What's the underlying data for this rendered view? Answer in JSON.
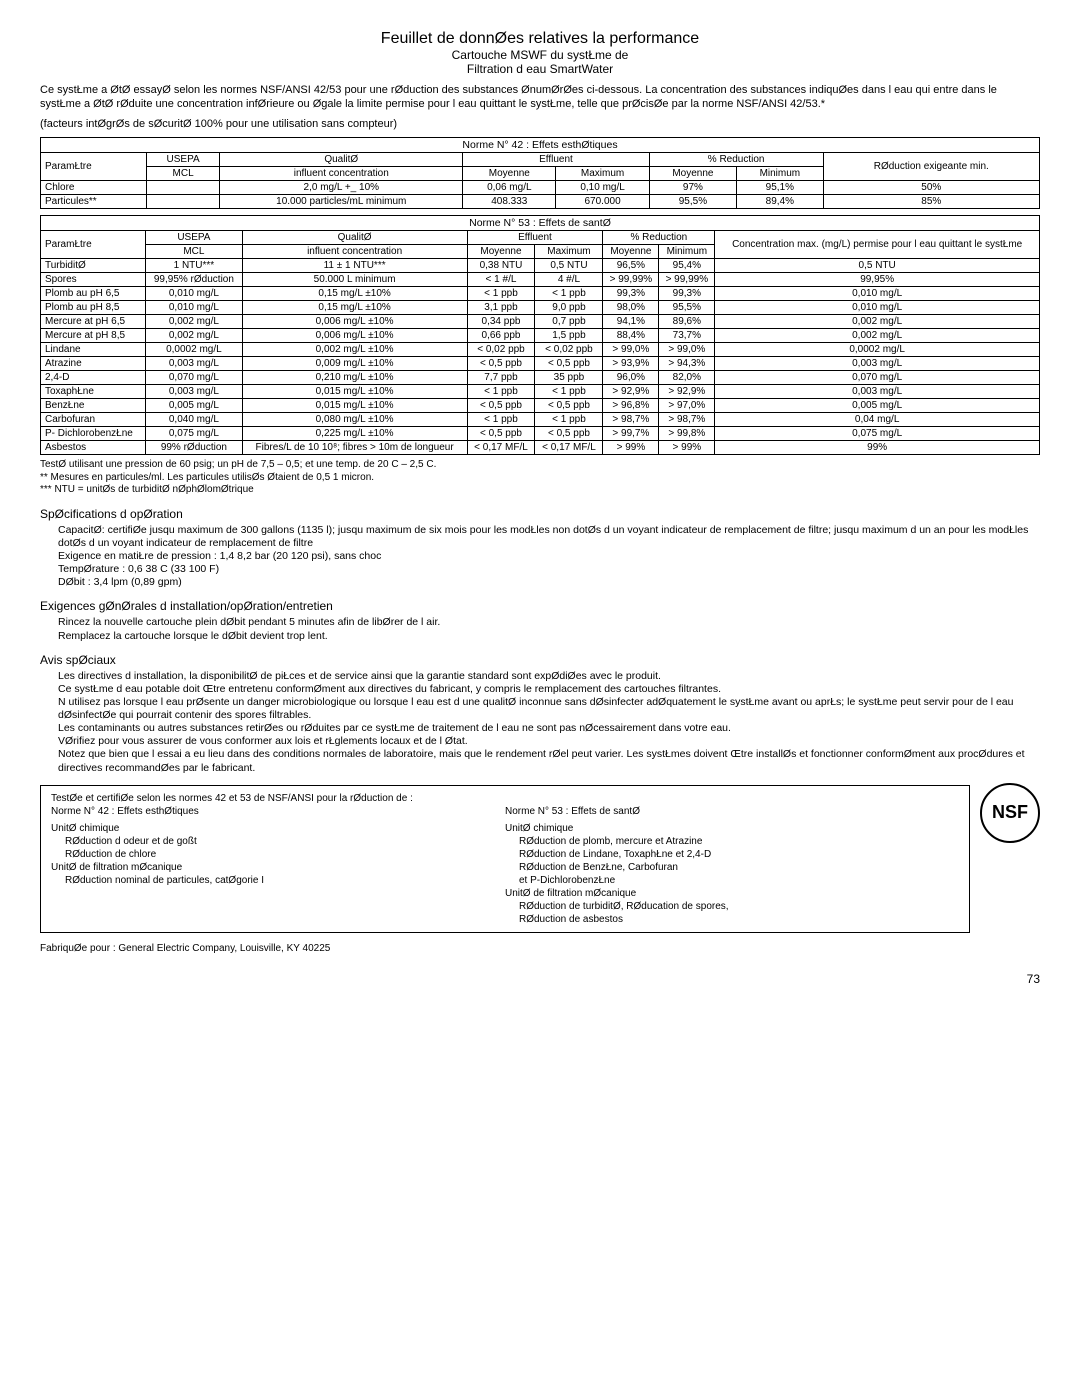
{
  "title": {
    "main": "Feuillet de donnØes relatives   la performance",
    "sub1": "Cartouche MSWF du systŁme de",
    "sub2": "Filtration d eau SmartWater"
  },
  "intro": "Ce systŁme a ØtØ essayØ selon les normes NSF/ANSI 42/53 pour une rØduction des substances ØnumØrØes ci-dessous. La concentration des substances indiquØes dans l eau qui entre dans le systŁme a ØtØ rØduite   une concentration infØrieure ou Øgale   la limite permise pour l eau quittant le systŁme, telle que prØcisØe par la norme NSF/ANSI 42/53.*",
  "factors": "(facteurs intØgrØs de sØcuritØ   100% pour une utilisation sans compteur)",
  "table42": {
    "caption": "Norme N° 42 : Effets esthØtiques",
    "headers": {
      "param": "ParamŁtre",
      "usepa1": "USEPA",
      "usepa2": "MCL",
      "qual1": "QualitØ",
      "qual2": "influent concentration",
      "effl": "Effluent",
      "moy": "Moyenne",
      "max": "Maximum",
      "redpct": "% Reduction",
      "moy2": "Moyenne",
      "min": "Minimum",
      "redmin": "RØduction exigeante min."
    },
    "rows": [
      {
        "p": "Chlore",
        "u": "",
        "q": "2,0 mg/L +_ 10%",
        "em": "0,06 mg/L",
        "ex": "0,10 mg/L",
        "rm": "97%",
        "rn": "95,1%",
        "rq": "50%"
      },
      {
        "p": "Particules**",
        "u": "",
        "q": "10.000 particles/mL minimum",
        "em": "408.333",
        "ex": "670.000",
        "rm": "95,5%",
        "rn": "89,4%",
        "rq": "85%"
      }
    ]
  },
  "table53": {
    "caption": "Norme N° 53 : Effets de santØ",
    "headers": {
      "param": "ParamŁtre",
      "usepa1": "USEPA",
      "usepa2": "MCL",
      "qual1": "QualitØ",
      "qual2": "influent concentration",
      "effl": "Effluent",
      "moy": "Moyenne",
      "max": "Maximum",
      "redpct": "% Reduction",
      "moy2": "Moyenne",
      "min": "Minimum",
      "conc": "Concentration max. (mg/L) permise pour l eau quittant le systŁme"
    },
    "rows": [
      {
        "p": "TurbiditØ",
        "u": "1 NTU***",
        "q": "11 ± 1 NTU***",
        "em": "0,38 NTU",
        "ex": "0,5 NTU",
        "rm": "96,5%",
        "rn": "95,4%",
        "rq": "0,5 NTU"
      },
      {
        "p": "Spores",
        "u": "99,95% rØduction",
        "q": "50.000 L minimum",
        "em": "< 1 #/L",
        "ex": "4 #/L",
        "rm": "> 99,99%",
        "rn": "> 99,99%",
        "rq": "99,95%"
      },
      {
        "p": "Plomb au pH 6,5",
        "u": "0,010 mg/L",
        "q": "0,15 mg/L ±10%",
        "em": "< 1 ppb",
        "ex": "< 1 ppb",
        "rm": "99,3%",
        "rn": "99,3%",
        "rq": "0,010 mg/L"
      },
      {
        "p": "Plomb au pH 8,5",
        "u": "0,010 mg/L",
        "q": "0,15 mg/L ±10%",
        "em": "3,1 ppb",
        "ex": "9,0 ppb",
        "rm": "98,0%",
        "rn": "95,5%",
        "rq": "0,010 mg/L"
      },
      {
        "p": "Mercure at pH 6,5",
        "u": "0,002 mg/L",
        "q": "0,006 mg/L ±10%",
        "em": "0,34 ppb",
        "ex": "0,7 ppb",
        "rm": "94,1%",
        "rn": "89,6%",
        "rq": "0,002 mg/L"
      },
      {
        "p": "Mercure at pH 8,5",
        "u": "0,002 mg/L",
        "q": "0,006 mg/L ±10%",
        "em": "0,66 ppb",
        "ex": "1,5 ppb",
        "rm": "88,4%",
        "rn": "73,7%",
        "rq": "0,002 mg/L"
      },
      {
        "p": "Lindane",
        "u": "0,0002 mg/L",
        "q": "0,002 mg/L ±10%",
        "em": "< 0,02 ppb",
        "ex": "< 0,02 ppb",
        "rm": "> 99,0%",
        "rn": "> 99,0%",
        "rq": "0,0002 mg/L"
      },
      {
        "p": "Atrazine",
        "u": "0,003 mg/L",
        "q": "0,009 mg/L ±10%",
        "em": "< 0,5 ppb",
        "ex": "< 0,5 ppb",
        "rm": "> 93,9%",
        "rn": "> 94,3%",
        "rq": "0,003 mg/L"
      },
      {
        "p": "2,4-D",
        "u": "0,070 mg/L",
        "q": "0,210 mg/L ±10%",
        "em": "7,7 ppb",
        "ex": "35 ppb",
        "rm": "96,0%",
        "rn": "82,0%",
        "rq": "0,070 mg/L"
      },
      {
        "p": "ToxaphŁne",
        "u": "0,003 mg/L",
        "q": "0,015 mg/L ±10%",
        "em": "< 1 ppb",
        "ex": "< 1 ppb",
        "rm": "> 92,9%",
        "rn": "> 92,9%",
        "rq": "0,003 mg/L"
      },
      {
        "p": "BenzŁne",
        "u": "0,005 mg/L",
        "q": "0,015 mg/L ±10%",
        "em": "< 0,5 ppb",
        "ex": "< 0,5 ppb",
        "rm": "> 96,8%",
        "rn": "> 97,0%",
        "rq": "0,005 mg/L"
      },
      {
        "p": "Carbofuran",
        "u": "0,040 mg/L",
        "q": "0,080 mg/L ±10%",
        "em": "< 1 ppb",
        "ex": "< 1 ppb",
        "rm": "> 98,7%",
        "rn": "> 98,7%",
        "rq": "0,04 mg/L"
      },
      {
        "p": "P- DichlorobenzŁne",
        "u": "0,075 mg/L",
        "q": "0,225 mg/L ±10%",
        "em": "< 0,5 ppb",
        "ex": "< 0,5 ppb",
        "rm": "> 99,7%",
        "rn": "> 99,8%",
        "rq": "0,075 mg/L"
      },
      {
        "p": "Asbestos",
        "u": "99% rØduction",
        "q": "Fibres/L de 10  10⁸; fibres > 10m de longueur",
        "em": "< 0,17 MF/L",
        "ex": "< 0,17 MF/L",
        "rm": "> 99%",
        "rn": "> 99%",
        "rq": "99%"
      }
    ]
  },
  "footnotes": {
    "f1": "TestØ utilisant une pression de 60 psig; un pH de 7,5 – 0,5; et une temp. de 20  C – 2,5  C.",
    "f2": "** Mesures en particules/ml. Les particules utilisØs Øtaient de 0,5 1 micron.",
    "f3": "*** NTU = unitØs de turbiditØ nØphØlomØtrique"
  },
  "spec": {
    "h": "SpØcifications d opØration",
    "l1": "CapacitØ: certifiØe jusqu   maximum de 300 gallons (1135 l); jusqu   maximum de six mois pour les modŁles non dotØs d un voyant indicateur de remplacement de filtre; jusqu   maximum d un an pour les modŁles dotØs d un voyant indicateur de remplacement de filtre",
    "l2": "Exigence en matiŁre de pression : 1,4   8,2 bar (20   120 psi), sans choc",
    "l3": "TempØrature : 0,6  38  C (33  100  F)",
    "l4": "DØbit : 3,4 lpm (0,89 gpm)"
  },
  "install": {
    "h": "Exigences gØnØrales d installation/opØration/entretien",
    "l1": "Rincez la nouvelle cartouche   plein dØbit pendant 5 minutes afin de libØrer de l air.",
    "l2": "Remplacez la cartouche lorsque le dØbit devient trop lent."
  },
  "avis": {
    "h": "Avis spØciaux",
    "l1": "Les directives d installation, la disponibilitØ de piŁces et de service ainsi que la garantie standard sont expØdiØes avec le produit.",
    "l2": "Ce systŁme d eau potable doit Œtre entretenu conformØment aux directives du fabricant, y compris le remplacement des cartouches filtrantes.",
    "l3": "N utilisez pas lorsque l eau prØsente un danger microbiologique ou lorsque l eau est d une qualitØ inconnue sans dØsinfecter adØquatement le systŁme avant ou aprŁs; le systŁme peut servir pour de l eau dØsinfectØe qui pourrait contenir des spores filtrables.",
    "l4": "Les contaminants ou autres substances retirØes ou rØduites par ce systŁme de traitement de l eau ne sont pas nØcessairement dans votre eau.",
    "l5": "VØrifiez pour vous assurer de vous conformer aux lois et rŁglements locaux et de l Øtat.",
    "l6": "Notez que bien que l essai a eu lieu dans des conditions normales de laboratoire, mais que le rendement rØel peut varier. Les systŁmes doivent Œtre installØs et fonctionner conformØment aux procØdures et directives recommandØes par le fabricant."
  },
  "cert": {
    "top": "TestØe et certifiØe selon les normes 42 et 53 de NSF/ANSI pour la rØduction de :",
    "col1h": "Norme N° 42 : Effets esthØtiques",
    "c1a": "UnitØ chimique",
    "c1a1": "RØduction d odeur et de goßt",
    "c1a2": "RØduction de chlore",
    "c1b": "UnitØ de filtration mØcanique",
    "c1b1": "RØduction nominal de particules, catØgorie I",
    "col2h": "Norme N° 53 : Effets de santØ",
    "c2a": "UnitØ chimique",
    "c2a1": "RØduction de plomb, mercure et Atrazine",
    "c2a2": "RØduction de Lindane, ToxaphŁne et 2,4-D",
    "c2a3": "RØduction de BenzŁne, Carbofuran",
    "c2a4": "et P-DichlorobenzŁne",
    "c2b": "UnitØ de filtration mØcanique",
    "c2b1": "RØduction de turbiditØ, RØducation de spores,",
    "c2b2": "RØduction de asbestos",
    "nsf": "NSF"
  },
  "mfr": "FabriquØe pour : General Electric Company, Louisville, KY 40225",
  "page": "73"
}
